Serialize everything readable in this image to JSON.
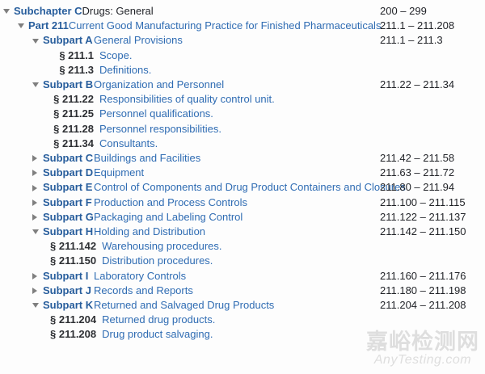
{
  "colors": {
    "label_blue": "#275d9c",
    "link_blue": "#2f6cb3",
    "section_label": "#2d2f33",
    "text_black": "#1f2126",
    "arrow_gray": "#7f7f7f",
    "watermark_gray": "#dedede"
  },
  "tree": {
    "nodes": [
      {
        "level": 0,
        "state": "expanded",
        "label": "Subchapter C",
        "title": "Drugs: General",
        "title_style": "plain",
        "range": "200 – 299"
      },
      {
        "level": 1,
        "state": "expanded",
        "label": "Part 211",
        "title": "Current Good Manufacturing Practice for Finished Pharmaceuticals",
        "title_style": "link",
        "range": "211.1 – 211.208"
      },
      {
        "level": 2,
        "state": "expanded",
        "label": "Subpart A",
        "title": "General Provisions",
        "title_style": "link",
        "range": "211.1 – 211.3"
      },
      {
        "level": 3,
        "state": "none",
        "label": "§ 211.1",
        "title": "Scope.",
        "title_style": "link",
        "range": ""
      },
      {
        "level": 3,
        "state": "none",
        "label": "§ 211.3",
        "title": "Definitions.",
        "title_style": "link",
        "range": ""
      },
      {
        "level": 2,
        "state": "expanded",
        "label": "Subpart B",
        "title": "Organization and Personnel",
        "title_style": "link",
        "range": "211.22 – 211.34"
      },
      {
        "level": 3,
        "state": "none",
        "label": "§ 211.22",
        "title": "Responsibilities of quality control unit.",
        "title_style": "link",
        "range": ""
      },
      {
        "level": 3,
        "state": "none",
        "label": "§ 211.25",
        "title": "Personnel qualifications.",
        "title_style": "link",
        "range": ""
      },
      {
        "level": 3,
        "state": "none",
        "label": "§ 211.28",
        "title": "Personnel responsibilities.",
        "title_style": "link",
        "range": ""
      },
      {
        "level": 3,
        "state": "none",
        "label": "§ 211.34",
        "title": "Consultants.",
        "title_style": "link",
        "range": ""
      },
      {
        "level": 2,
        "state": "collapsed",
        "label": "Subpart C",
        "title": "Buildings and Facilities",
        "title_style": "link",
        "range": "211.42 – 211.58"
      },
      {
        "level": 2,
        "state": "collapsed",
        "label": "Subpart D",
        "title": "Equipment",
        "title_style": "link",
        "range": "211.63 – 211.72"
      },
      {
        "level": 2,
        "state": "collapsed",
        "label": "Subpart E",
        "title": "Control of Components and Drug Product Containers and Closures",
        "title_style": "link",
        "range": "211.80 – 211.94"
      },
      {
        "level": 2,
        "state": "collapsed",
        "label": "Subpart F",
        "title": "Production and Process Controls",
        "title_style": "link",
        "range": "211.100 – 211.115"
      },
      {
        "level": 2,
        "state": "collapsed",
        "label": "Subpart G",
        "title": "Packaging and Labeling Control",
        "title_style": "link",
        "range": "211.122 – 211.137"
      },
      {
        "level": 2,
        "state": "expanded",
        "label": "Subpart H",
        "title": "Holding and Distribution",
        "title_style": "link",
        "range": "211.142 – 211.150"
      },
      {
        "level": 3,
        "state": "none",
        "label": "§ 211.142",
        "title": "Warehousing procedures.",
        "title_style": "link",
        "range": ""
      },
      {
        "level": 3,
        "state": "none",
        "label": "§ 211.150",
        "title": "Distribution procedures.",
        "title_style": "link",
        "range": ""
      },
      {
        "level": 2,
        "state": "collapsed",
        "label": "Subpart I",
        "title": "Laboratory Controls",
        "title_style": "link",
        "range": "211.160 – 211.176"
      },
      {
        "level": 2,
        "state": "collapsed",
        "label": "Subpart J",
        "title": "Records and Reports",
        "title_style": "link",
        "range": "211.180 – 211.198"
      },
      {
        "level": 2,
        "state": "expanded",
        "label": "Subpart K",
        "title": "Returned and Salvaged Drug Products",
        "title_style": "link",
        "range": "211.204 – 211.208"
      },
      {
        "level": 3,
        "state": "none",
        "label": "§ 211.204",
        "title": "Returned drug products.",
        "title_style": "link",
        "range": ""
      },
      {
        "level": 3,
        "state": "none",
        "label": "§ 211.208",
        "title": "Drug product salvaging.",
        "title_style": "link",
        "range": ""
      }
    ]
  },
  "watermark": {
    "cjk": "嘉峪检测网",
    "latin": "AnyTesting.com"
  }
}
